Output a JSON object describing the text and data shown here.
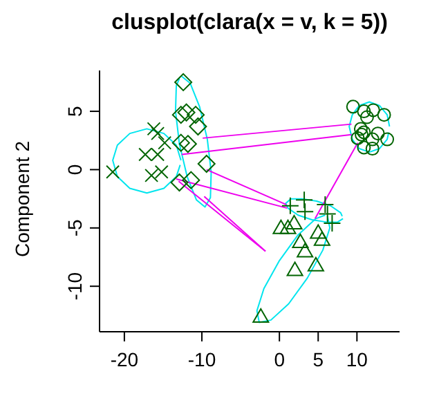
{
  "chart_data": {
    "type": "scatter",
    "title": "clusplot(clara(x = v, k = 5))",
    "ylabel": "Component 2",
    "xlim": [
      -23.2,
      15.5
    ],
    "ylim": [
      -13.9,
      8.5
    ],
    "xticks": [
      -20,
      -10,
      0,
      5,
      10
    ],
    "yticks": [
      -10,
      -5,
      0,
      5
    ],
    "grid": false,
    "legend": false,
    "series": [
      {
        "type": "line",
        "color": "#00e5ee",
        "line_style": "solid",
        "x": [
          -12.7,
          -13.3,
          -14.9,
          -17.1,
          -19.3,
          -20.9,
          -21.5,
          -20.9,
          -19.3,
          -17.1,
          -14.9,
          -13.3,
          -12.8
        ],
        "values": [
          0.8,
          2.1,
          3.1,
          3.5,
          3.1,
          2.1,
          0.8,
          -0.6,
          -1.6,
          -2.0,
          -1.6,
          -0.6,
          0.4
        ]
      },
      {
        "type": "line",
        "color": "#00e5ee",
        "line_style": "solid",
        "x": [
          -12.6,
          -11.5,
          -10.3,
          -9.3,
          -8.8,
          -8.9,
          -9.6,
          -10.7,
          -11.9,
          -12.9,
          -13.4,
          -13.3,
          -12.9
        ],
        "values": [
          8.0,
          7.4,
          5.4,
          2.6,
          -0.2,
          -2.4,
          -3.2,
          -2.6,
          -0.6,
          2.2,
          5.0,
          7.2,
          7.8
        ]
      },
      {
        "type": "line",
        "color": "#00e5ee",
        "line_style": "solid",
        "x": [
          14.2,
          13.9,
          12.9,
          11.6,
          10.3,
          9.4,
          9.0,
          9.4,
          10.3,
          11.6,
          12.9,
          13.9,
          14.1
        ],
        "values": [
          3.7,
          4.7,
          5.5,
          5.8,
          5.5,
          4.7,
          3.7,
          2.6,
          1.8,
          1.5,
          1.8,
          2.6,
          3.2
        ]
      },
      {
        "type": "line",
        "color": "#00e5ee",
        "line_style": "solid",
        "x": [
          8.2,
          7.5,
          6.1,
          4.2,
          2.4,
          1.1,
          0.8,
          1.5,
          2.9,
          4.8,
          6.6,
          7.9,
          8.1
        ],
        "values": [
          -4.2,
          -4.5,
          -4.5,
          -4.3,
          -3.9,
          -3.3,
          -2.9,
          -2.5,
          -2.5,
          -2.7,
          -3.1,
          -3.7,
          -4.0
        ]
      },
      {
        "type": "line",
        "color": "#00e5ee",
        "line_style": "solid",
        "x": [
          6.2,
          6.5,
          5.6,
          3.6,
          1.2,
          -1.1,
          -2.6,
          -2.9,
          -2.0,
          0,
          2.4,
          4.7,
          5.9
        ],
        "values": [
          -4.0,
          -5.0,
          -6.9,
          -9.3,
          -11.5,
          -12.9,
          -13.1,
          -12.1,
          -10.2,
          -7.8,
          -5.6,
          -4.2,
          -3.9
        ]
      },
      {
        "type": "line",
        "color": "#ee00ee",
        "line_style": "solid",
        "x": [
          -9.9,
          9.3
        ],
        "values": [
          2.7,
          3.9
        ]
      },
      {
        "type": "line",
        "color": "#ee00ee",
        "line_style": "solid",
        "x": [
          -12.6,
          9.3
        ],
        "values": [
          1.3,
          3.0
        ]
      },
      {
        "type": "line",
        "color": "#ee00ee",
        "line_style": "solid",
        "x": [
          -9.4,
          0.9
        ],
        "values": [
          0.0,
          -3.0
        ]
      },
      {
        "type": "line",
        "color": "#ee00ee",
        "line_style": "solid",
        "x": [
          -13.3,
          1.0
        ],
        "values": [
          -0.8,
          -3.3
        ]
      },
      {
        "type": "line",
        "color": "#ee00ee",
        "line_style": "solid",
        "x": [
          -13.0,
          -1.8
        ],
        "values": [
          -1.0,
          -7.0
        ]
      },
      {
        "type": "line",
        "color": "#ee00ee",
        "line_style": "solid",
        "x": [
          -9.7,
          -1.8
        ],
        "values": [
          -2.3,
          -7.0
        ]
      },
      {
        "type": "line",
        "color": "#ee00ee",
        "line_style": "solid",
        "x": [
          10.1,
          4.6
        ],
        "values": [
          2.3,
          -4.2
        ]
      },
      {
        "color": "#006400",
        "marker": "cross",
        "x": [
          -21.5,
          -16.2,
          -15.7,
          -14.8,
          -17.3,
          -15.7,
          -16.5,
          -15.2
        ],
        "values": [
          -0.2,
          3.5,
          3.1,
          2.3,
          1.3,
          1.3,
          -0.5,
          -0.2
        ]
      },
      {
        "color": "#006400",
        "marker": "diamond",
        "x": [
          -12.4,
          -12.7,
          -12.0,
          -10.8,
          -10.5,
          -12.7,
          -11.8,
          -9.4,
          -12.9,
          -11.4
        ],
        "values": [
          7.5,
          4.7,
          4.9,
          4.7,
          3.7,
          2.3,
          2.2,
          0.5,
          -1.1,
          -0.9
        ]
      },
      {
        "color": "#006400",
        "marker": "plus",
        "x": [
          1.4,
          3.2,
          3.3,
          5.9,
          6.2,
          6.8
        ],
        "values": [
          -3.1,
          -2.6,
          -3.6,
          -3.0,
          -3.8,
          -4.6
        ]
      },
      {
        "color": "#006400",
        "marker": "triangle",
        "x": [
          0.2,
          1.1,
          1.9,
          5.0,
          5.5,
          2.7,
          3.3,
          2.0,
          4.7,
          -2.4
        ],
        "values": [
          -5.0,
          -5.0,
          -4.6,
          -5.4,
          -6.0,
          -6.2,
          -7.0,
          -8.6,
          -8.2,
          -12.6
        ]
      },
      {
        "color": "#006400",
        "marker": "circle",
        "x": [
          9.5,
          10.9,
          12.1,
          13.5,
          11.3,
          10.5,
          10.9,
          10.6,
          12.7,
          13.9,
          12.0,
          10.9,
          12.0,
          10.1
        ],
        "values": [
          5.4,
          5.0,
          5.1,
          4.7,
          4.5,
          3.5,
          3.2,
          3.0,
          3.1,
          2.6,
          2.6,
          1.9,
          1.8,
          2.7
        ]
      }
    ]
  }
}
